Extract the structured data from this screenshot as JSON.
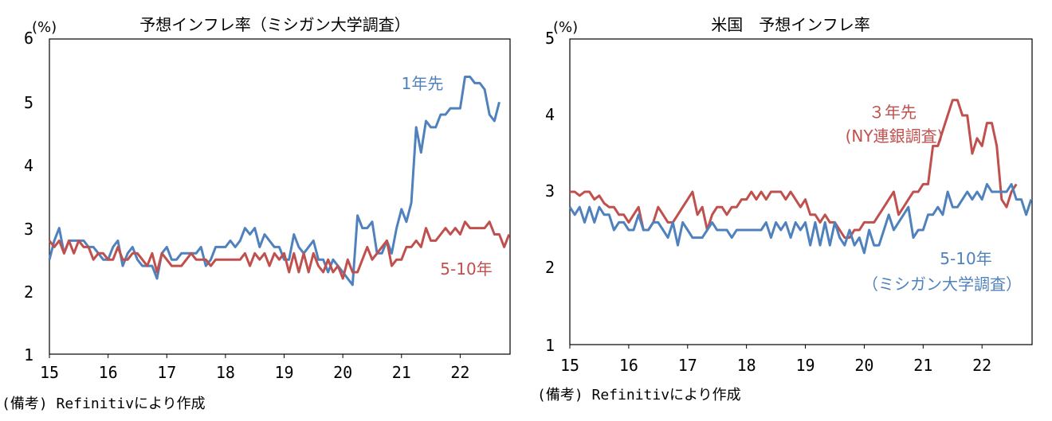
{
  "colors": {
    "blue": "#4f81bd",
    "red": "#c0504d",
    "axis": "#000000",
    "frame": "#000000"
  },
  "charts": [
    {
      "id": "left",
      "title": "予想インフレ率（ミシガン大学調査）",
      "unit": "(%)",
      "note": "(備考) Refinitivにより作成",
      "annotations": {
        "blue": "1年先",
        "red": "5-10年"
      },
      "y_ticks": [
        "6",
        "5",
        "4",
        "3",
        "2",
        "1"
      ],
      "x_ticks": [
        "15",
        "16",
        "17",
        "18",
        "19",
        "20",
        "21",
        "22"
      ]
    },
    {
      "id": "right",
      "title": "米国　予想インフレ率",
      "unit": "(%)",
      "note": "(備考) Refinitivにより作成",
      "annotations": {
        "red": [
          "３年先",
          "(NY連銀調査)"
        ],
        "blue": [
          "5-10年",
          "（ミシガン大学調査）"
        ]
      },
      "y_ticks": [
        "5",
        "4",
        "3",
        "2",
        "1"
      ],
      "x_ticks": [
        "15",
        "16",
        "17",
        "18",
        "19",
        "20",
        "21",
        "22"
      ]
    }
  ],
  "chart_data": [
    {
      "type": "line",
      "title": "予想インフレ率（ミシガン大学調査）",
      "ylabel": "(%)",
      "ylim": [
        1,
        6
      ],
      "xlim": [
        2015.0,
        2022.85
      ],
      "x_start": "2015-01",
      "x_step": "month",
      "series": [
        {
          "name": "1年先",
          "color": "#4f81bd",
          "values": [
            2.5,
            2.8,
            3.0,
            2.6,
            2.8,
            2.8,
            2.8,
            2.8,
            2.7,
            2.7,
            2.6,
            2.5,
            2.5,
            2.7,
            2.8,
            2.4,
            2.6,
            2.7,
            2.5,
            2.4,
            2.4,
            2.4,
            2.2,
            2.6,
            2.7,
            2.5,
            2.5,
            2.6,
            2.6,
            2.6,
            2.6,
            2.7,
            2.4,
            2.5,
            2.7,
            2.7,
            2.7,
            2.8,
            2.7,
            2.8,
            3.0,
            2.9,
            3.0,
            2.7,
            2.9,
            2.8,
            2.7,
            2.7,
            2.5,
            2.5,
            2.9,
            2.7,
            2.6,
            2.7,
            2.8,
            2.5,
            2.5,
            2.3,
            2.5,
            2.4,
            2.3,
            2.2,
            2.1,
            3.2,
            3.0,
            3.0,
            3.1,
            2.6,
            2.6,
            2.8,
            2.6,
            3.0,
            3.3,
            3.1,
            3.4,
            4.6,
            4.2,
            4.7,
            4.6,
            4.6,
            4.8,
            4.8,
            4.9,
            4.9,
            4.9,
            5.4,
            5.4,
            5.3,
            5.3,
            5.2,
            4.8,
            4.7,
            5.0
          ]
        },
        {
          "name": "5-10年",
          "color": "#c0504d",
          "values": [
            2.8,
            2.7,
            2.8,
            2.6,
            2.8,
            2.6,
            2.8,
            2.7,
            2.7,
            2.5,
            2.6,
            2.6,
            2.5,
            2.5,
            2.7,
            2.5,
            2.5,
            2.6,
            2.6,
            2.5,
            2.4,
            2.6,
            2.3,
            2.6,
            2.5,
            2.4,
            2.4,
            2.4,
            2.5,
            2.6,
            2.5,
            2.5,
            2.5,
            2.4,
            2.5,
            2.5,
            2.5,
            2.5,
            2.5,
            2.5,
            2.6,
            2.4,
            2.6,
            2.5,
            2.6,
            2.4,
            2.6,
            2.5,
            2.6,
            2.3,
            2.6,
            2.3,
            2.6,
            2.3,
            2.6,
            2.4,
            2.3,
            2.5,
            2.3,
            2.4,
            2.2,
            2.5,
            2.3,
            2.3,
            2.5,
            2.7,
            2.5,
            2.6,
            2.7,
            2.8,
            2.4,
            2.5,
            2.5,
            2.7,
            2.7,
            2.8,
            2.7,
            3.0,
            2.8,
            2.8,
            2.9,
            3.0,
            2.9,
            3.0,
            2.9,
            3.1,
            3.0,
            3.0,
            3.0,
            3.0,
            3.1,
            2.9,
            2.9,
            2.7,
            2.9
          ]
        }
      ]
    },
    {
      "type": "line",
      "title": "米国　予想インフレ率",
      "ylabel": "(%)",
      "ylim": [
        1,
        5
      ],
      "xlim": [
        2015.0,
        2022.85
      ],
      "x_start": "2015-01",
      "x_step": "month",
      "series": [
        {
          "name": "３年先 (NY連銀調査)",
          "color": "#c0504d",
          "values": [
            3.0,
            3.0,
            2.95,
            3.0,
            3.0,
            2.9,
            2.95,
            2.85,
            2.8,
            2.8,
            2.7,
            2.7,
            2.6,
            2.7,
            2.8,
            2.5,
            2.5,
            2.6,
            2.8,
            2.7,
            2.6,
            2.6,
            2.7,
            2.8,
            2.9,
            3.0,
            2.7,
            2.8,
            2.5,
            2.7,
            2.8,
            2.8,
            2.7,
            2.8,
            2.8,
            2.9,
            2.9,
            3.0,
            2.9,
            3.0,
            2.9,
            3.0,
            3.0,
            3.0,
            2.9,
            3.0,
            2.9,
            2.8,
            2.9,
            2.7,
            2.7,
            2.6,
            2.7,
            2.6,
            2.6,
            2.5,
            2.4,
            2.4,
            2.5,
            2.5,
            2.6,
            2.6,
            2.6,
            2.7,
            2.8,
            2.9,
            3.0,
            2.7,
            2.8,
            2.9,
            3.0,
            3.0,
            3.1,
            3.1,
            3.6,
            3.6,
            3.8,
            4.0,
            4.2,
            4.2,
            4.0,
            4.0,
            3.5,
            3.7,
            3.6,
            3.9,
            3.9,
            3.6,
            2.9,
            2.8,
            3.0,
            3.1
          ]
        },
        {
          "name": "5-10年 （ミシガン大学調査）",
          "color": "#4f81bd",
          "values": [
            2.8,
            2.7,
            2.8,
            2.6,
            2.8,
            2.6,
            2.8,
            2.7,
            2.7,
            2.5,
            2.6,
            2.6,
            2.5,
            2.5,
            2.7,
            2.5,
            2.5,
            2.6,
            2.6,
            2.5,
            2.4,
            2.6,
            2.3,
            2.6,
            2.5,
            2.4,
            2.4,
            2.4,
            2.5,
            2.6,
            2.5,
            2.5,
            2.5,
            2.4,
            2.5,
            2.5,
            2.5,
            2.5,
            2.5,
            2.5,
            2.6,
            2.4,
            2.6,
            2.5,
            2.6,
            2.4,
            2.6,
            2.5,
            2.6,
            2.3,
            2.6,
            2.3,
            2.6,
            2.3,
            2.6,
            2.4,
            2.3,
            2.5,
            2.3,
            2.4,
            2.2,
            2.5,
            2.3,
            2.3,
            2.5,
            2.7,
            2.5,
            2.6,
            2.7,
            2.8,
            2.4,
            2.5,
            2.5,
            2.7,
            2.7,
            2.8,
            2.7,
            3.0,
            2.8,
            2.8,
            2.9,
            3.0,
            2.9,
            3.0,
            2.9,
            3.1,
            3.0,
            3.0,
            3.0,
            3.0,
            3.1,
            2.9,
            2.9,
            2.7,
            2.9
          ]
        }
      ]
    }
  ]
}
